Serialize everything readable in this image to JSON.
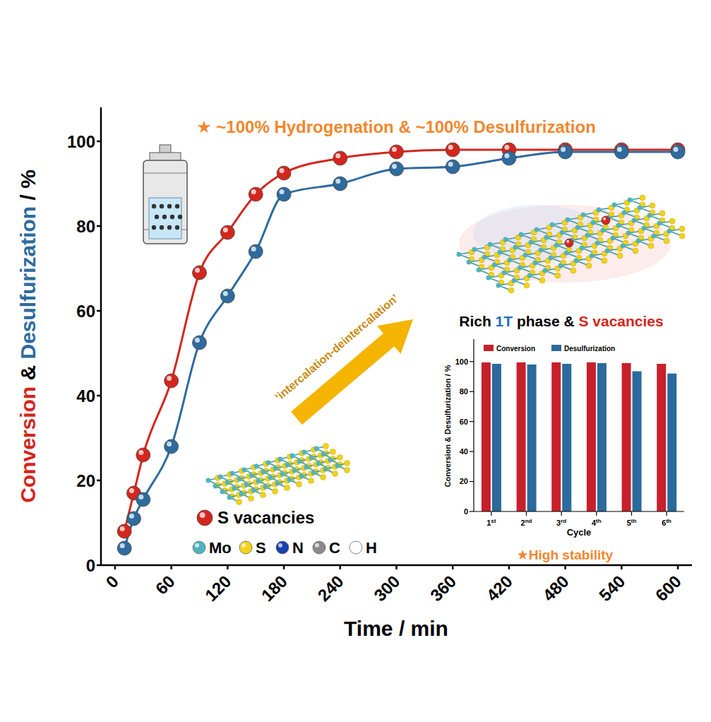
{
  "chart_data": [
    {
      "type": "line",
      "title": "★ ~100% Hydrogenation & ~100% Desulfurization",
      "xlabel": "Time / min",
      "ylabel": "Conversion & Desulfurization / %",
      "x": [
        10,
        20,
        30,
        60,
        90,
        120,
        150,
        180,
        240,
        300,
        360,
        420,
        480,
        540,
        600
      ],
      "series": [
        {
          "name": "Conversion",
          "color": "#d4261c",
          "marker": "circle",
          "values": [
            8,
            17,
            26,
            43.5,
            69,
            78.5,
            87.5,
            92.5,
            96,
            97.5,
            98,
            98,
            98,
            98,
            98
          ]
        },
        {
          "name": "Desulfurization",
          "color": "#2e6b9e",
          "marker": "circle",
          "values": [
            4,
            11,
            15.5,
            28,
            52.5,
            63.5,
            74,
            87.5,
            90,
            93.5,
            94,
            96,
            97.5,
            97.5,
            97.5
          ]
        }
      ],
      "xlim": [
        -15,
        615
      ],
      "xticks": [
        0,
        60,
        120,
        180,
        240,
        300,
        360,
        420,
        480,
        540,
        600
      ],
      "ylim": [
        0,
        108
      ],
      "yticks": [
        0,
        20,
        40,
        60,
        80,
        100
      ],
      "grid": false,
      "annotations": [
        {
          "text": "‘intercalation-deintercalation’"
        },
        {
          "segments": [
            {
              "text": "Rich",
              "color": "#000000"
            },
            {
              "text": "1T",
              "color": "#1f6fc0"
            },
            {
              "text": "phase &",
              "color": "#000000"
            },
            {
              "text": "S vacancies",
              "color": "#d4261c"
            }
          ]
        }
      ],
      "structure_legend": [
        {
          "name": "S vacancies",
          "color": "#d4261c"
        },
        {
          "name": "Mo",
          "color": "#4fb3bf"
        },
        {
          "name": "S",
          "color": "#f2d21b"
        },
        {
          "name": "N",
          "color": "#1a3fb0"
        },
        {
          "name": "C",
          "color": "#8a8a8a"
        },
        {
          "name": "H",
          "color": "#ffffff"
        }
      ]
    },
    {
      "type": "bar",
      "xlabel": "Cycle",
      "ylabel": "Conversion & Desulfurization / %",
      "categories": [
        "1st",
        "2nd",
        "3rd",
        "4th",
        "5th",
        "6th"
      ],
      "series": [
        {
          "name": "Conversion",
          "color": "#c8202a",
          "values": [
            99.5,
            99.5,
            99.5,
            99.5,
            99,
            98.5
          ]
        },
        {
          "name": "Desulfurization",
          "color": "#2b6a9c",
          "values": [
            98.5,
            98,
            98.5,
            99,
            93.5,
            92
          ]
        }
      ],
      "ylim": [
        0,
        115
      ],
      "yticks": [
        0,
        20,
        40,
        60,
        80,
        100
      ],
      "grid": false,
      "legend": "top",
      "annotations": [
        {
          "text": "★High stability"
        }
      ]
    }
  ]
}
